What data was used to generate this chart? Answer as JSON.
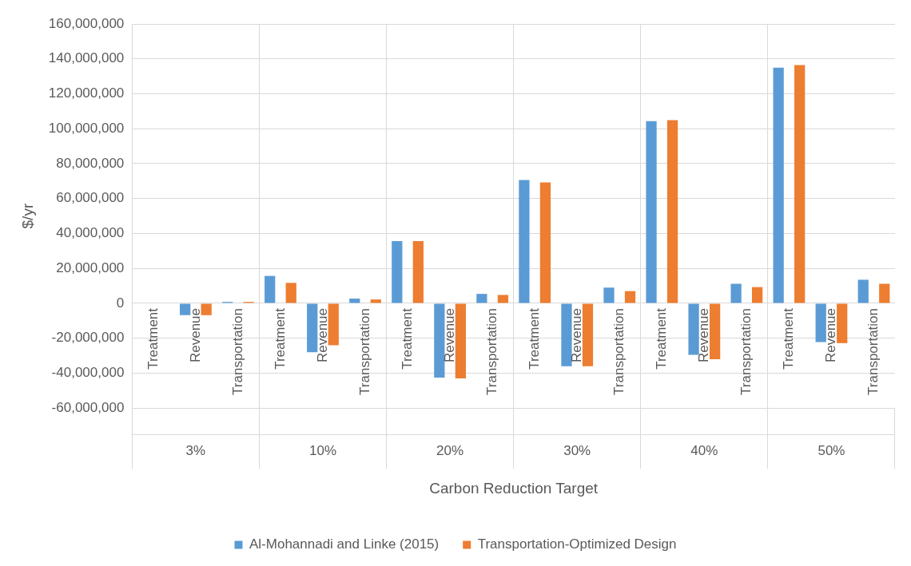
{
  "chart_data": {
    "type": "bar",
    "xlabel": "Carbon Reduction Target",
    "ylabel": "$/yr",
    "categories": [
      "Treatment",
      "Revenue",
      "Transportation",
      "Treatment",
      "Revenue",
      "Transportation",
      "Treatment",
      "Revenue",
      "Transportation",
      "Treatment",
      "Revenue",
      "Transportation",
      "Treatment",
      "Revenue",
      "Transportation",
      "Treatment",
      "Revenue",
      "Transportation"
    ],
    "annotations": [
      "3%",
      "10%",
      "20%",
      "30%",
      "40%",
      "50%"
    ],
    "series": [
      {
        "name": "Al-Mohannadi and Linke (2015)",
        "color": "#5b9bd5",
        "values": [
          0,
          -6800000,
          800000,
          15700000,
          -28000000,
          2700000,
          35600000,
          -42500000,
          5400000,
          70600000,
          -36000000,
          9000000,
          104300000,
          -29500000,
          11200000,
          135000000,
          -22200000,
          13500000
        ]
      },
      {
        "name": "Transportation-Optimized Design",
        "color": "#ed7d31",
        "values": [
          0,
          -6800000,
          800000,
          11700000,
          -24000000,
          2200000,
          35600000,
          -43000000,
          4800000,
          69300000,
          -36000000,
          7000000,
          104900000,
          -32000000,
          9300000,
          136500000,
          -22800000,
          11200000
        ]
      }
    ],
    "ylim": [
      -60000000,
      160000000
    ],
    "yticks": [
      {
        "value": -60000000,
        "label": "-60,000,000"
      },
      {
        "value": -40000000,
        "label": "-40,000,000"
      },
      {
        "value": -20000000,
        "label": "-20,000,000"
      },
      0,
      {
        "value": 20000000,
        "label": "20,000,000"
      },
      {
        "value": 40000000,
        "label": "40,000,000"
      },
      {
        "value": 60000000,
        "label": "60,000,000"
      },
      {
        "value": 80000000,
        "label": "80,000,000"
      },
      {
        "value": 100000000,
        "label": "100,000,000"
      },
      {
        "value": 120000000,
        "label": "120,000,000"
      },
      {
        "value": 140000000,
        "label": "140,000,000"
      },
      {
        "value": 160000000,
        "label": "160,000,000"
      }
    ],
    "grid": true,
    "legend": "bottom"
  }
}
